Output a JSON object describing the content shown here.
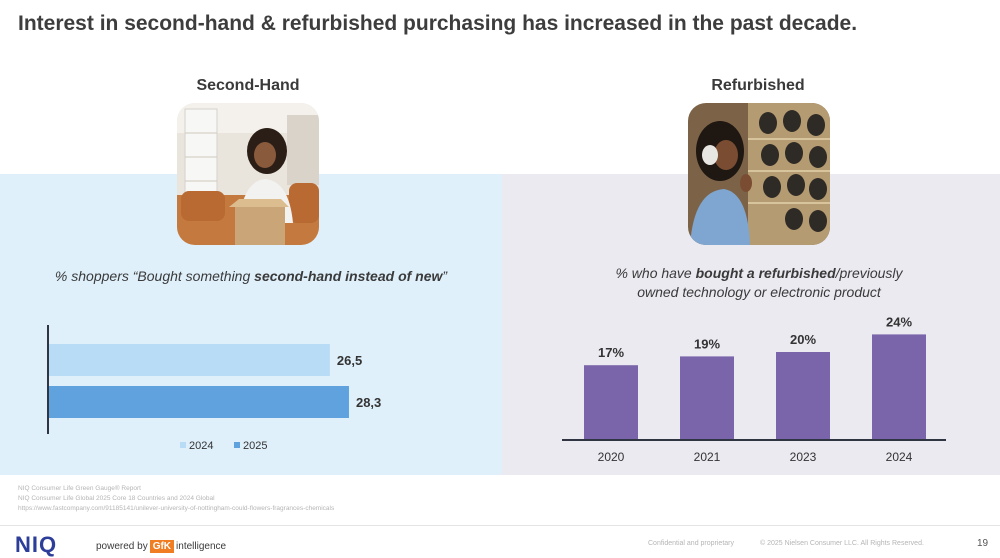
{
  "title": "Interest in second-hand & refurbished purchasing has increased in the past decade.",
  "left": {
    "heading": "Second-Hand",
    "subtitle_pre": "% shoppers “Bought something ",
    "subtitle_bold": "second-hand instead of new",
    "subtitle_post": "”"
  },
  "right": {
    "heading": "Refurbished",
    "subtitle_pre": "% who have ",
    "subtitle_bold": "bought a refurbished",
    "subtitle_post": "/previously",
    "subtitle_line2": "owned technology or electronic product"
  },
  "chart_data": [
    {
      "type": "bar",
      "orientation": "horizontal",
      "series": [
        {
          "name": "2024",
          "values": [
            26.5
          ],
          "labels": [
            "26,5"
          ],
          "color": "#b9dcf6"
        },
        {
          "name": "2025",
          "values": [
            28.3
          ],
          "labels": [
            "28,3"
          ],
          "color": "#5fa2dd"
        }
      ],
      "legend": "bottom",
      "grid": false
    },
    {
      "type": "bar",
      "categories": [
        "2020",
        "2021",
        "2023",
        "2024"
      ],
      "values": [
        17,
        19,
        20,
        24
      ],
      "labels": [
        "17%",
        "19%",
        "20%",
        "24%"
      ],
      "color": "#7b65aa",
      "grid": false
    }
  ],
  "source": {
    "line1": "NIQ Consumer Life Green Gauge® Report",
    "line2": "NIQ Consumer Life Global 2025 Core 18 Countries and  2024 Global",
    "line3": "https://www.fastcompany.com/91185141/unilever-university-of-nottingham-could-flowers-fragrances-chemicals"
  },
  "footer": {
    "logo": "NIQ",
    "powered_pre": "powered by",
    "gfk": "GfK",
    "powered_post": "intelligence",
    "confidential": "Confidential and proprietary",
    "copyright": "© 2025 Nielsen Consumer LLC. All Rights Reserved.",
    "page": "19"
  },
  "colors": {
    "accent_blue": "#5fa2dd",
    "light_blue": "#b9dcf6",
    "purple": "#7b65aa",
    "panel_left": "#dff0fb",
    "panel_right": "#ebeaf1"
  }
}
